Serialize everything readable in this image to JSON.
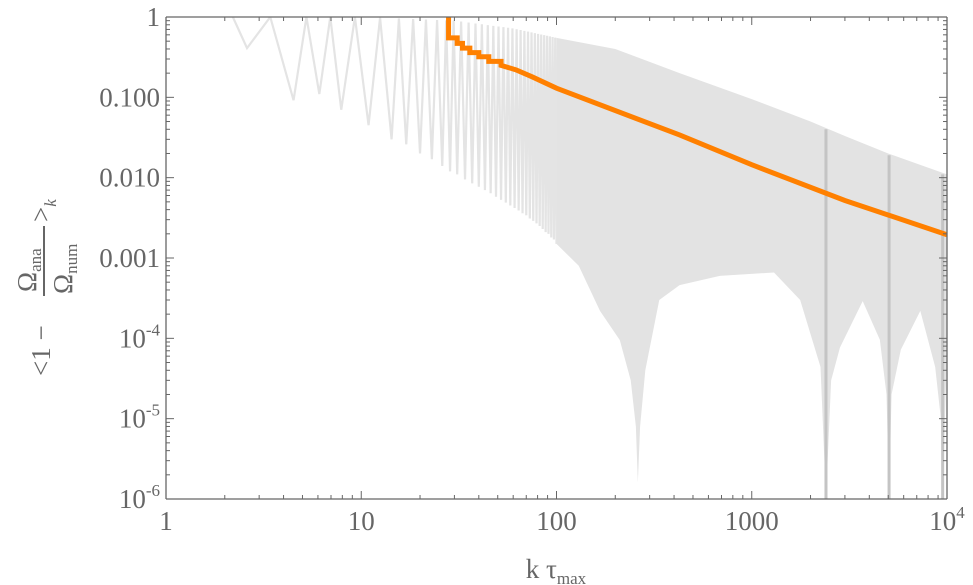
{
  "chart_data": {
    "type": "line",
    "xscale": "log",
    "yscale": "log",
    "xlim": [
      1,
      10000
    ],
    "ylim": [
      1e-06,
      1
    ],
    "grid": false,
    "xlabel": {
      "base": "k τ",
      "sub": "max"
    },
    "ylabel": {
      "prefix": "<1 − ",
      "num": "Ω",
      "num_sub": "ana",
      "den": "Ω",
      "den_sub": "num",
      "suffix": ">",
      "suffix_sub": "k"
    },
    "x_ticks": [
      {
        "value": 1,
        "label": "1"
      },
      {
        "value": 10,
        "label": "10"
      },
      {
        "value": 100,
        "label": "100"
      },
      {
        "value": 1000,
        "label": "1000"
      },
      {
        "value": 10000,
        "label": "10",
        "sup": "4"
      }
    ],
    "y_ticks": [
      {
        "value": 1,
        "label": "1"
      },
      {
        "value": 0.1,
        "label": "0.100"
      },
      {
        "value": 0.01,
        "label": "0.010"
      },
      {
        "value": 0.001,
        "label": "0.001"
      },
      {
        "value": 0.0001,
        "label": "10",
        "sup": "-4"
      },
      {
        "value": 1e-05,
        "label": "10",
        "sup": "-5"
      },
      {
        "value": 1e-06,
        "label": "10",
        "sup": "-6"
      }
    ],
    "colors": {
      "orange": "#ff8000",
      "band": "#e3e3e3",
      "oscillation": "#e4e4e4",
      "spikes": "#c4c4c4",
      "axis": "#666666"
    },
    "series": [
      {
        "kind": "oscillating-line",
        "color": "#e4e4e4",
        "upper": [
          [
            2.2,
            1
          ],
          [
            10,
            1
          ],
          [
            30,
            0.9
          ],
          [
            60,
            0.72
          ],
          [
            100,
            0.55
          ]
        ],
        "dips": [
          [
            2.6,
            0.41
          ],
          [
            4.5,
            0.092
          ],
          [
            6.1,
            0.11
          ],
          [
            7.9,
            0.07
          ],
          [
            10.9,
            0.045
          ],
          [
            14.3,
            0.03
          ],
          [
            17,
            0.026
          ],
          [
            20,
            0.02
          ],
          [
            23,
            0.017
          ],
          [
            26,
            0.014
          ],
          [
            28.5,
            0.012
          ],
          [
            31,
            0.011
          ],
          [
            34,
            0.0095
          ],
          [
            37,
            0.0085
          ],
          [
            40,
            0.0077
          ],
          [
            43,
            0.007
          ],
          [
            46,
            0.0064
          ],
          [
            49,
            0.0058
          ],
          [
            52,
            0.0053
          ],
          [
            55,
            0.0049
          ],
          [
            58,
            0.0045
          ],
          [
            61,
            0.0042
          ],
          [
            64,
            0.0039
          ],
          [
            67,
            0.0036
          ],
          [
            70,
            0.0034
          ],
          [
            73,
            0.0031
          ],
          [
            76,
            0.0029
          ],
          [
            79,
            0.0027
          ],
          [
            82,
            0.0025
          ],
          [
            85,
            0.0023
          ],
          [
            88,
            0.0021
          ],
          [
            91,
            0.002
          ],
          [
            94,
            0.0018
          ],
          [
            97,
            0.0017
          ],
          [
            100,
            0.0015
          ]
        ]
      },
      {
        "kind": "band",
        "color": "#e3e3e3",
        "upper": [
          [
            100,
            0.55
          ],
          [
            200,
            0.4
          ],
          [
            427,
            0.2
          ],
          [
            1000,
            0.095
          ],
          [
            2000,
            0.05
          ],
          [
            3000,
            0.033
          ],
          [
            5000,
            0.02
          ],
          [
            10000,
            0.011
          ]
        ],
        "lower": [
          [
            100,
            0.0015
          ],
          [
            130,
            0.0008
          ],
          [
            167,
            0.00022
          ],
          [
            211,
            9.5e-05
          ],
          [
            240,
            3e-05
          ],
          [
            255,
            8e-06
          ],
          [
            261,
            1.6e-06
          ],
          [
            268,
            8e-06
          ],
          [
            285,
            4e-05
          ],
          [
            336,
            0.0003
          ],
          [
            427,
            0.00046
          ],
          [
            686,
            0.0006
          ],
          [
            1300,
            0.00066
          ],
          [
            1770,
            0.0003
          ],
          [
            2250,
            4.4e-05
          ],
          [
            2400,
            1e-06
          ],
          [
            2550,
            3e-05
          ],
          [
            2830,
            7.7e-05
          ],
          [
            3700,
            0.00029
          ],
          [
            4530,
            9.6e-05
          ],
          [
            4900,
            2e-05
          ],
          [
            5050,
            1e-06
          ],
          [
            5200,
            2e-05
          ],
          [
            5800,
            7.2e-05
          ],
          [
            7300,
            0.00022
          ],
          [
            8700,
            4.4e-05
          ],
          [
            9300,
            1e-05
          ],
          [
            9500,
            1e-06
          ],
          [
            10000,
            8e-05
          ]
        ]
      },
      {
        "kind": "spikes",
        "color": "#c4c4c4",
        "points": [
          [
            2400,
            0.04
          ],
          [
            5050,
            0.019
          ],
          [
            9500,
            0.011
          ]
        ]
      },
      {
        "kind": "line",
        "color": "#ff8000",
        "points": [
          [
            28,
            1
          ],
          [
            28,
            0.55
          ],
          [
            31,
            0.55
          ],
          [
            31,
            0.47
          ],
          [
            33,
            0.47
          ],
          [
            33,
            0.41
          ],
          [
            36,
            0.41
          ],
          [
            36,
            0.36
          ],
          [
            40,
            0.36
          ],
          [
            40,
            0.32
          ],
          [
            45,
            0.32
          ],
          [
            45,
            0.28
          ],
          [
            52,
            0.28
          ],
          [
            52,
            0.25
          ],
          [
            62,
            0.22
          ],
          [
            75,
            0.18
          ],
          [
            100,
            0.13
          ],
          [
            427,
            0.034
          ],
          [
            1000,
            0.0145
          ],
          [
            3000,
            0.0052
          ],
          [
            10000,
            0.00195
          ]
        ]
      }
    ]
  }
}
